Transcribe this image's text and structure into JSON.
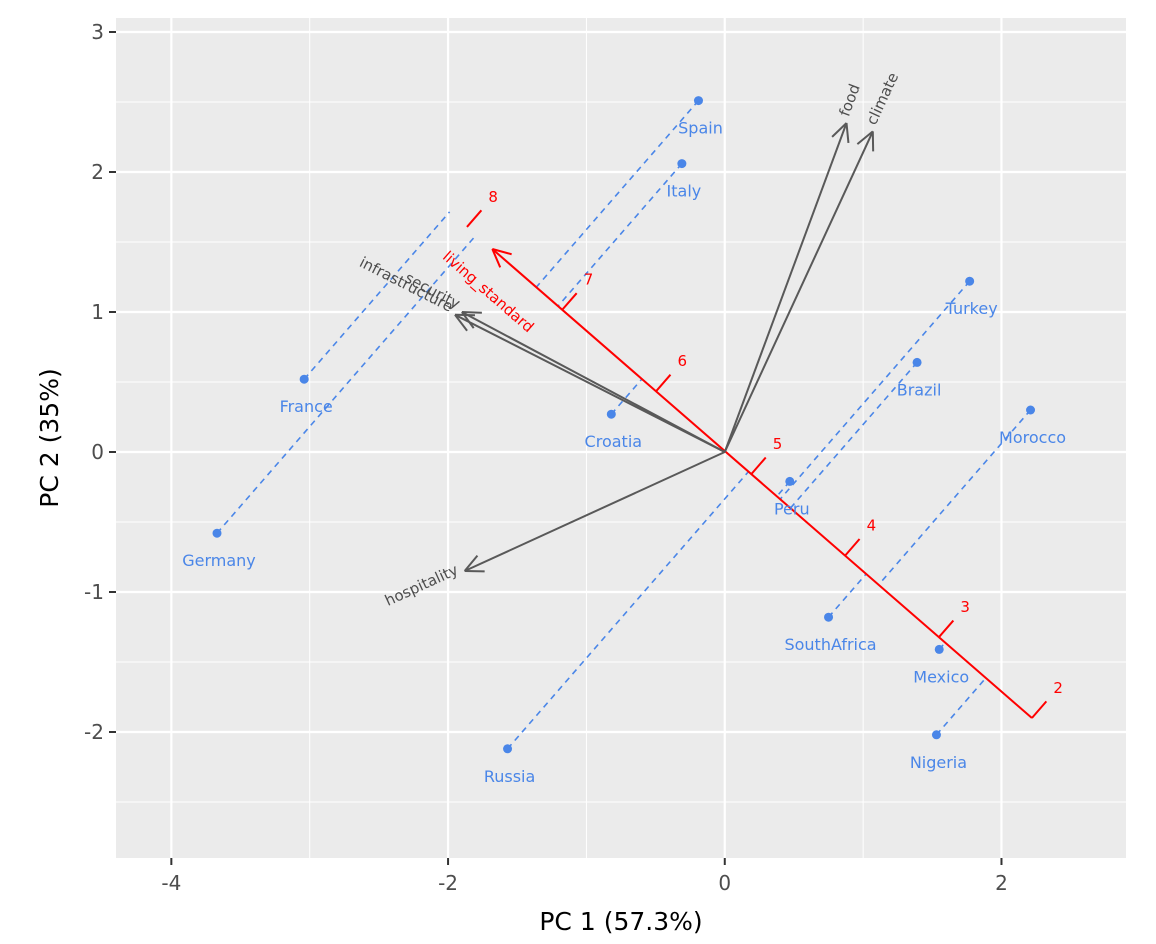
{
  "chart_data": {
    "type": "scatter",
    "subtype": "pca-biplot",
    "xlabel": "PC 1 (57.3%)",
    "ylabel": "PC 2 (35%)",
    "xlim": [
      -4.4,
      2.9
    ],
    "ylim": [
      -2.9,
      3.1
    ],
    "x_ticks": [
      -4,
      -2,
      0,
      2
    ],
    "y_ticks": [
      -2,
      -1,
      0,
      1,
      2,
      3
    ],
    "x_tick_labels": [
      "-4",
      "-2",
      "0",
      "2"
    ],
    "y_tick_labels": [
      "-2",
      "-1",
      "0",
      "1",
      "2",
      "3"
    ],
    "grid": true,
    "colors": {
      "panel": "#ebebeb",
      "grid": "#ffffff",
      "points": "#4a86e8",
      "loadings": "#595959",
      "calibrated_axis": "#ff0000"
    },
    "points": [
      {
        "label": "Spain",
        "x": -0.19,
        "y": 2.51
      },
      {
        "label": "Italy",
        "x": -0.31,
        "y": 2.06
      },
      {
        "label": "Turkey",
        "x": 1.77,
        "y": 1.22
      },
      {
        "label": "Brazil",
        "x": 1.39,
        "y": 0.64
      },
      {
        "label": "France",
        "x": -3.04,
        "y": 0.52
      },
      {
        "label": "Morocco",
        "x": 2.21,
        "y": 0.3
      },
      {
        "label": "Croatia",
        "x": -0.82,
        "y": 0.27
      },
      {
        "label": "Peru",
        "x": 0.47,
        "y": -0.21
      },
      {
        "label": "Germany",
        "x": -3.67,
        "y": -0.58
      },
      {
        "label": "SouthAfrica",
        "x": 0.75,
        "y": -1.18
      },
      {
        "label": "Mexico",
        "x": 1.55,
        "y": -1.41
      },
      {
        "label": "Nigeria",
        "x": 1.53,
        "y": -2.02
      },
      {
        "label": "Russia",
        "x": -1.57,
        "y": -2.12
      }
    ],
    "loadings": [
      {
        "label": "food",
        "x": 0.88,
        "y": 2.35
      },
      {
        "label": "climate",
        "x": 1.07,
        "y": 2.29
      },
      {
        "label": "infrastructure",
        "x": -1.95,
        "y": 0.98
      },
      {
        "label": "security",
        "x": -1.9,
        "y": 1.0
      },
      {
        "label": "hospitality",
        "x": -1.88,
        "y": -0.85
      }
    ],
    "calibrated_axis": {
      "label": "living_standard",
      "from": {
        "x": 2.22,
        "y": -1.9
      },
      "to": {
        "x": -1.68,
        "y": 1.45
      },
      "ticks": [
        {
          "label": "2",
          "x": 2.22,
          "y": -1.9
        },
        {
          "label": "3",
          "x": 1.55,
          "y": -1.32
        },
        {
          "label": "4",
          "x": 0.87,
          "y": -0.74
        },
        {
          "label": "5",
          "x": 0.19,
          "y": -0.16
        },
        {
          "label": "6",
          "x": -0.5,
          "y": 0.43
        },
        {
          "label": "7",
          "x": -1.18,
          "y": 1.01
        },
        {
          "label": "8",
          "x": -1.87,
          "y": 1.6
        }
      ]
    }
  }
}
